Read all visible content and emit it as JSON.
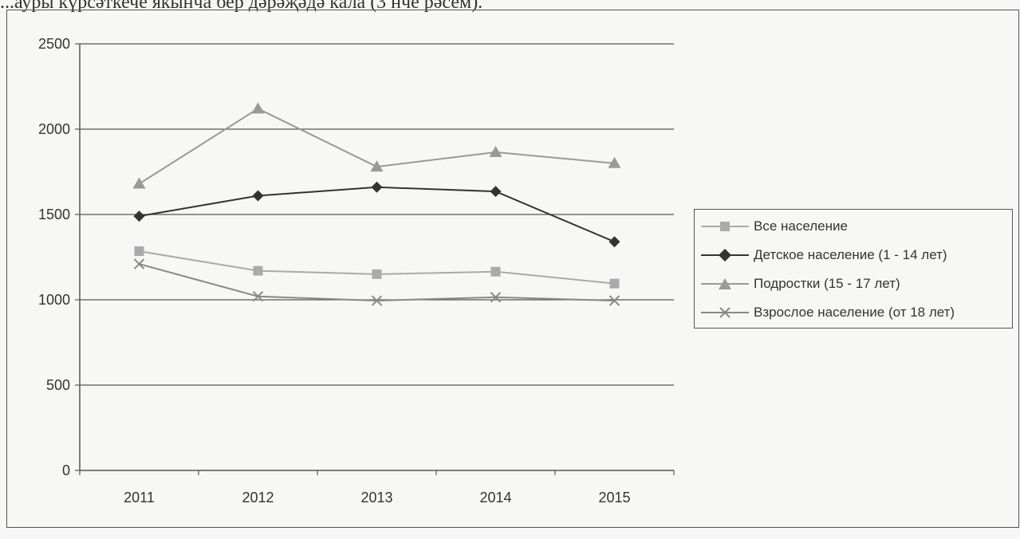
{
  "caption": "...ауры күрсәткече якынча бер дәрәҗәдә кала (3 нче рәсем).",
  "chart_data": {
    "type": "line",
    "title": "",
    "xlabel": "",
    "ylabel": "",
    "categories": [
      "2011",
      "2012",
      "2013",
      "2014",
      "2015"
    ],
    "ylim": [
      0,
      2500
    ],
    "yticks": [
      0,
      500,
      1000,
      1500,
      2000,
      2500
    ],
    "grid": true,
    "legend_position": "right",
    "series": [
      {
        "name": "Все население",
        "values": [
          1285,
          1170,
          1150,
          1165,
          1095
        ],
        "color": "#aaaaaa",
        "marker": "square"
      },
      {
        "name": "Детское население (1 - 14 лет)",
        "values": [
          1490,
          1610,
          1660,
          1635,
          1340
        ],
        "color": "#333333",
        "marker": "diamond"
      },
      {
        "name": "Подростки (15 - 17 лет)",
        "values": [
          1680,
          2120,
          1780,
          1865,
          1800
        ],
        "color": "#999999",
        "marker": "triangle"
      },
      {
        "name": "Взрослое население (от 18 лет)",
        "values": [
          1210,
          1020,
          995,
          1015,
          995
        ],
        "color": "#888888",
        "marker": "x"
      }
    ]
  }
}
